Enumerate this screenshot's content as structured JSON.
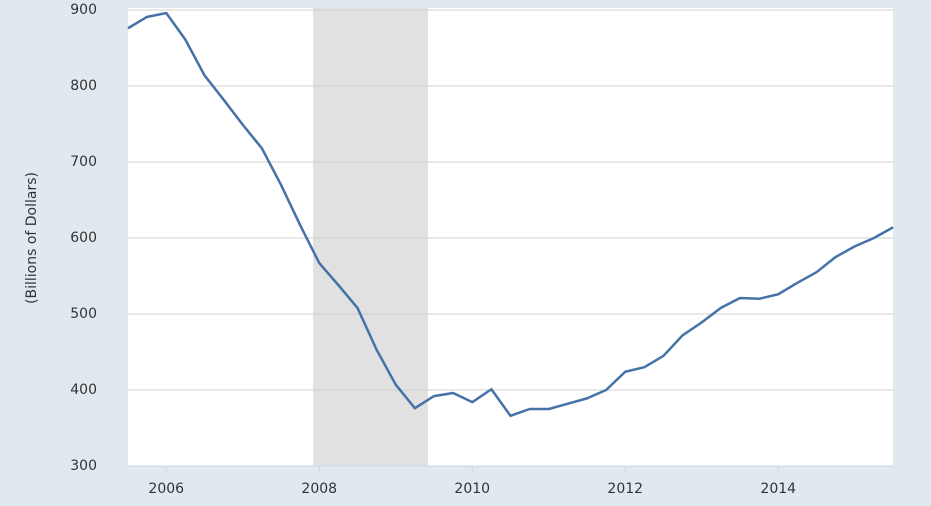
{
  "chart_data": {
    "type": "line",
    "y_label": "(Billions of Dollars)",
    "x": [
      2005.5,
      2005.75,
      2006.0,
      2006.25,
      2006.5,
      2006.75,
      2007.0,
      2007.25,
      2007.5,
      2007.75,
      2008.0,
      2008.25,
      2008.5,
      2008.75,
      2009.0,
      2009.25,
      2009.5,
      2009.75,
      2010.0,
      2010.25,
      2010.5,
      2010.75,
      2011.0,
      2011.25,
      2011.5,
      2011.75,
      2012.0,
      2012.25,
      2012.5,
      2012.75,
      2013.0,
      2013.25,
      2013.5,
      2013.75,
      2014.0,
      2014.25,
      2014.5,
      2014.75,
      2015.0,
      2015.25,
      2015.5
    ],
    "series": [
      {
        "color": "#4572a7",
        "values": [
          876,
          891,
          896,
          861,
          814,
          782,
          749,
          718,
          670,
          617,
          567,
          538,
          508,
          453,
          407,
          376,
          392,
          396,
          384,
          401,
          366,
          375,
          375,
          382,
          389,
          400,
          424,
          430,
          445,
          472,
          489,
          508,
          521,
          520,
          526,
          541,
          555,
          575,
          589,
          600,
          614
        ]
      }
    ],
    "recessions": [
      [
        2007.92,
        2009.42
      ]
    ],
    "recession_color": "#e1e1e1",
    "xlim": [
      2005.5,
      2015.5
    ],
    "xticks": [
      2006,
      2008,
      2010,
      2012,
      2014
    ],
    "ylim": [
      300,
      900
    ],
    "yticks": [
      300,
      400,
      500,
      600,
      700,
      800,
      900
    ],
    "grid": true
  }
}
